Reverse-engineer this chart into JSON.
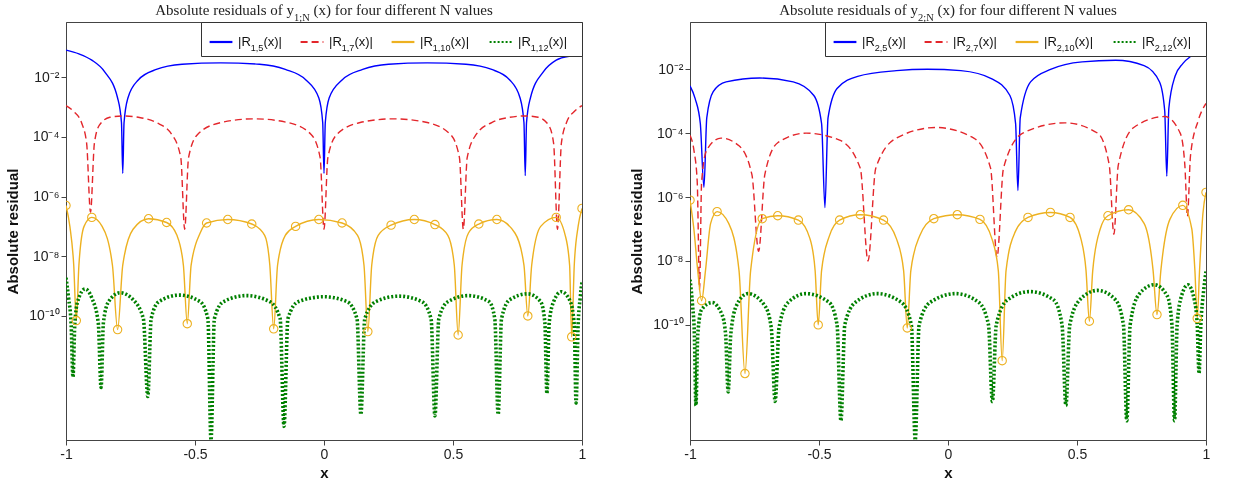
{
  "chart_data": [
    {
      "type": "line",
      "title": "Absolute residuals of y$_{1;N}$ (x) for four different N values",
      "xlabel": "x",
      "ylabel": "Absolute residual",
      "log": true,
      "legend": "top right",
      "xlim": [
        -1,
        1
      ],
      "xticks": [
        -1,
        -0.5,
        0,
        0.5,
        1
      ],
      "ylim": [
        7e-15,
        0.7
      ],
      "yticks": [
        {
          "value": 1e-10,
          "label": "10⁻¹⁰"
        },
        {
          "value": 1e-08,
          "label": "10⁻⁸"
        },
        {
          "value": 1e-06,
          "label": "10⁻⁶"
        },
        {
          "value": 0.0001,
          "label": "10⁻⁴"
        },
        {
          "value": 0.01,
          "label": "10⁻²"
        }
      ],
      "series": [
        {
          "name": "|R$_{1,5}$(x)|",
          "color": "#0000ff",
          "line_style": "solid",
          "x": [
            -1,
            -0.95,
            -0.9,
            -0.85,
            -0.8,
            -0.785,
            -0.78,
            -0.775,
            -0.76,
            -0.72,
            -0.65,
            -0.55,
            -0.4,
            -0.25,
            -0.15,
            -0.07,
            -0.02,
            -0.005,
            0,
            0.005,
            0.02,
            0.07,
            0.15,
            0.25,
            0.4,
            0.55,
            0.65,
            0.72,
            0.76,
            0.775,
            0.78,
            0.785,
            0.8,
            0.85,
            0.9,
            0.95
          ],
          "values": [
            0.08,
            0.06,
            0.037,
            0.015,
            0.002,
            0.0003,
            6e-06,
            0.0003,
            0.002,
            0.008,
            0.018,
            0.027,
            0.03,
            0.027,
            0.018,
            0.008,
            0.002,
            0.0003,
            6e-06,
            0.0003,
            0.002,
            0.008,
            0.018,
            0.027,
            0.03,
            0.027,
            0.018,
            0.008,
            0.002,
            0.0003,
            5e-06,
            0.0003,
            0.002,
            0.015,
            0.037,
            0.05
          ]
        },
        {
          "name": "|R$_{1,7}$(x)|",
          "color": "#e3262b",
          "line_style": "dashed",
          "x": [
            -1,
            -0.97,
            -0.94,
            -0.92,
            -0.905,
            -0.89,
            -0.87,
            -0.83,
            -0.78,
            -0.72,
            -0.65,
            -0.59,
            -0.555,
            -0.54,
            -0.525,
            -0.49,
            -0.4,
            -0.27,
            -0.14,
            -0.05,
            -0.015,
            0,
            0.015,
            0.05,
            0.14,
            0.27,
            0.4,
            0.49,
            0.525,
            0.54,
            0.555,
            0.59,
            0.65,
            0.72,
            0.78,
            0.83,
            0.87,
            0.89,
            0.905,
            0.92,
            0.94,
            0.97,
            1
          ],
          "values": [
            0.0011,
            0.0007,
            0.0003,
            6e-05,
            3e-07,
            6e-05,
            0.00025,
            0.00045,
            0.0005,
            0.00045,
            0.0003,
            0.00012,
            2e-05,
            8e-08,
            2e-05,
            0.00012,
            0.0003,
            0.0004,
            0.0003,
            0.00012,
            2e-05,
            8e-08,
            2e-05,
            0.00012,
            0.0003,
            0.0004,
            0.0003,
            0.00012,
            2e-05,
            8e-08,
            2e-05,
            0.00012,
            0.0003,
            0.00045,
            0.0005,
            0.00045,
            0.00025,
            6e-05,
            8e-08,
            6e-05,
            0.0003,
            0.0007,
            0.0011
          ]
        },
        {
          "name": "|R$_{1,10}$(x)|",
          "color": "#edb120",
          "line_style": "solid",
          "x": [
            -1,
            -0.985,
            -0.97,
            -0.96,
            -0.95,
            -0.93,
            -0.9,
            -0.86,
            -0.82,
            -0.8,
            -0.78,
            -0.74,
            -0.68,
            -0.61,
            -0.57,
            -0.545,
            -0.53,
            -0.515,
            -0.48,
            -0.455,
            -0.373,
            -0.28,
            -0.23,
            -0.21,
            -0.195,
            -0.18,
            -0.15,
            -0.11,
            -0.02,
            0.07,
            0.13,
            0.155,
            0.17,
            0.185,
            0.21,
            0.26,
            0.35,
            0.43,
            0.48,
            0.505,
            0.52,
            0.535,
            0.56,
            0.6,
            0.67,
            0.74,
            0.775,
            0.79,
            0.805,
            0.84,
            0.9,
            0.935,
            0.952,
            0.96,
            0.97,
            0.985,
            1
          ],
          "values": [
            5e-07,
            1e-07,
            5e-09,
            7e-11,
            5e-09,
            1e-07,
            2e-07,
            1e-07,
            5e-09,
            3.5e-11,
            5e-09,
            8e-08,
            1.8e-07,
            1.35e-07,
            5e-08,
            5e-09,
            5.5e-11,
            5e-09,
            6e-08,
            1.3e-07,
            1.7e-07,
            1.2e-07,
            5e-08,
            5e-09,
            3.7e-11,
            5e-09,
            5e-08,
            1e-07,
            1.7e-07,
            1.3e-07,
            5e-08,
            5e-09,
            3e-11,
            5e-09,
            5e-08,
            1.1e-07,
            1.7e-07,
            1.15e-07,
            5e-08,
            5e-09,
            2.3e-11,
            5e-09,
            6e-08,
            1.2e-07,
            1.7e-07,
            6e-08,
            5e-09,
            1e-10,
            5e-09,
            1e-07,
            2e-07,
            5e-08,
            5e-09,
            2e-11,
            5e-09,
            1e-07,
            4e-07
          ]
        },
        {
          "type": "scatter",
          "marker": "circle",
          "color": "#edb120",
          "x": [
            -1,
            -0.96,
            -0.9,
            -0.8,
            -0.68,
            -0.61,
            -0.53,
            -0.455,
            -0.373,
            -0.28,
            -0.195,
            -0.11,
            -0.02,
            0.07,
            0.17,
            0.26,
            0.35,
            0.43,
            0.52,
            0.6,
            0.67,
            0.79,
            0.9,
            0.96,
            1
          ],
          "values": [
            5e-07,
            7e-11,
            2e-07,
            3.5e-11,
            1.8e-07,
            1.35e-07,
            5.5e-11,
            1.3e-07,
            1.7e-07,
            1.2e-07,
            3.7e-11,
            1e-07,
            1.7e-07,
            1.3e-07,
            3e-11,
            1.1e-07,
            1.7e-07,
            1.15e-07,
            2.3e-11,
            1.2e-07,
            1.7e-07,
            1e-10,
            2e-07,
            2e-11,
            4e-07
          ]
        },
        {
          "name": "|R$_{1,12}$(x)|",
          "color": "#008000",
          "line_style": "dotted",
          "x": [
            -1,
            -0.99,
            -0.98,
            -0.973,
            -0.966,
            -0.955,
            -0.926,
            -0.9,
            -0.875,
            -0.864,
            -0.855,
            -0.835,
            -0.79,
            -0.74,
            -0.7,
            -0.683,
            -0.67,
            -0.64,
            -0.56,
            -0.48,
            -0.45,
            -0.438,
            -0.425,
            -0.39,
            -0.3,
            -0.21,
            -0.17,
            -0.155,
            -0.14,
            -0.1,
            0,
            0.09,
            0.128,
            0.143,
            0.158,
            0.2,
            0.29,
            0.38,
            0.415,
            0.43,
            0.445,
            0.48,
            0.56,
            0.64,
            0.662,
            0.675,
            0.688,
            0.72,
            0.79,
            0.84,
            0.856,
            0.864,
            0.873,
            0.89,
            0.92,
            0.955,
            0.97,
            0.977,
            0.985,
            0.993,
            1
          ],
          "values": [
            1.9e-09,
            4e-10,
            5e-11,
            9e-13,
            5e-11,
            3e-10,
            8e-10,
            4e-10,
            6e-11,
            4e-13,
            6e-11,
            3e-10,
            6e-10,
            3.5e-10,
            8e-11,
            2e-13,
            8e-11,
            3e-10,
            5e-10,
            3e-10,
            8e-11,
            7e-15,
            8e-11,
            3e-10,
            4.8e-10,
            3e-10,
            8e-11,
            2e-14,
            8e-11,
            3e-10,
            4.4e-10,
            3e-10,
            8e-11,
            5e-14,
            8e-11,
            3e-10,
            4.6e-10,
            3e-10,
            8e-11,
            4.5e-14,
            8e-11,
            3e-10,
            4.8e-10,
            3e-10,
            8e-11,
            5e-14,
            8e-11,
            3.5e-10,
            5.5e-10,
            3e-10,
            6e-11,
            2.5e-13,
            6e-11,
            3e-10,
            6.5e-10,
            3e-10,
            5e-11,
            1.2e-13,
            5e-11,
            4e-10,
            1.4e-09
          ]
        }
      ]
    },
    {
      "type": "line",
      "title": "Absolute residuals of y$_{2;N}$ (x) for four different N values",
      "xlabel": "x",
      "ylabel": "Absolute residual",
      "log": true,
      "legend": "top right",
      "xlim": [
        -1,
        1
      ],
      "xticks": [
        -1,
        -0.5,
        0,
        0.5,
        1
      ],
      "ylim": [
        2.5e-14,
        0.3
      ],
      "yticks": [
        {
          "value": 1e-10,
          "label": "10⁻¹⁰"
        },
        {
          "value": 1e-08,
          "label": "10⁻⁸"
        },
        {
          "value": 1e-06,
          "label": "10⁻⁶"
        },
        {
          "value": 0.0001,
          "label": "10⁻⁴"
        },
        {
          "value": 0.01,
          "label": "10⁻²"
        }
      ],
      "series": [
        {
          "name": "|R$_{2,5}$(x)|",
          "color": "#0000ff",
          "line_style": "solid",
          "x": [
            -1,
            -0.98,
            -0.96,
            -0.946,
            -0.935,
            -0.91,
            -0.86,
            -0.73,
            -0.6,
            -0.52,
            -0.49,
            -0.477,
            -0.465,
            -0.43,
            -0.35,
            -0.2,
            -0.08,
            0.05,
            0.17,
            0.24,
            0.262,
            0.271,
            0.28,
            0.32,
            0.4,
            0.52,
            0.65,
            0.76,
            0.82,
            0.84,
            0.848,
            0.856,
            0.88,
            0.91,
            0.94
          ],
          "values": [
            0.003,
            0.0012,
            0.0002,
            2e-06,
            0.0003,
            0.002,
            0.004,
            0.0053,
            0.004,
            0.0015,
            0.0002,
            4.7e-07,
            0.0003,
            0.0025,
            0.006,
            0.009,
            0.01,
            0.009,
            0.005,
            0.0015,
            0.0002,
            1.6e-06,
            0.0003,
            0.004,
            0.01,
            0.017,
            0.019,
            0.013,
            0.004,
            0.0005,
            4.5e-06,
            0.0006,
            0.006,
            0.015,
            0.025
          ]
        },
        {
          "name": "|R$_{2,7}$(x)|",
          "color": "#e3262b",
          "line_style": "dashed",
          "x": [
            -1,
            -0.985,
            -0.972,
            -0.963,
            -0.955,
            -0.935,
            -0.88,
            -0.81,
            -0.76,
            -0.734,
            -0.71,
            -0.66,
            -0.55,
            -0.42,
            -0.34,
            -0.31,
            -0.28,
            -0.2,
            -0.047,
            0.1,
            0.165,
            0.19,
            0.215,
            0.29,
            0.453,
            0.58,
            0.625,
            0.643,
            0.66,
            0.72,
            0.84,
            0.9,
            0.918,
            0.928,
            0.94,
            0.97,
            1
          ],
          "values": [
            8.5e-05,
            3e-05,
            3e-06,
            1.3e-09,
            3e-06,
            3e-05,
            7e-05,
            4e-05,
            5e-06,
            2e-08,
            5e-06,
            5e-05,
            0.0001,
            6e-05,
            8e-06,
            1e-08,
            8e-06,
            7e-05,
            0.00015,
            7e-05,
            8e-06,
            1.3e-08,
            8e-06,
            0.0001,
            0.00021,
            0.0001,
            1e-05,
            6.8e-08,
            1e-05,
            0.00015,
            0.00033,
            0.0001,
            1e-05,
            2.5e-07,
            2e-05,
            0.00025,
            0.00085
          ]
        },
        {
          "name": "|R$_{2,10}$(x)|",
          "color": "#edb120",
          "line_style": "solid",
          "x": [
            -1,
            -0.985,
            -0.97,
            -0.955,
            -0.94,
            -0.92,
            -0.895,
            -0.85,
            -0.81,
            -0.787,
            -0.765,
            -0.72,
            -0.66,
            -0.58,
            -0.535,
            -0.515,
            -0.503,
            -0.49,
            -0.46,
            -0.42,
            -0.34,
            -0.25,
            -0.2,
            -0.172,
            -0.158,
            -0.144,
            -0.11,
            -0.055,
            0.036,
            0.124,
            0.17,
            0.195,
            0.21,
            0.225,
            0.26,
            0.31,
            0.397,
            0.473,
            0.515,
            0.535,
            0.548,
            0.561,
            0.59,
            0.62,
            0.7,
            0.76,
            0.795,
            0.81,
            0.825,
            0.86,
            0.91,
            0.945,
            0.957,
            0.966,
            0.975,
            0.988,
            1
          ],
          "values": [
            8e-07,
            1e-07,
            5e-09,
            5.7e-10,
            5e-09,
            1.5e-07,
            3.5e-07,
            1.5e-07,
            5e-09,
            3e-12,
            5e-09,
            2.1e-07,
            2.6e-07,
            1.9e-07,
            5e-08,
            5e-09,
            1e-10,
            5e-09,
            6e-08,
            1.9e-07,
            2.8e-07,
            1.9e-07,
            5e-08,
            5e-09,
            8e-11,
            5e-09,
            6e-08,
            2.1e-07,
            2.8e-07,
            2e-07,
            5e-08,
            5e-09,
            7.6e-12,
            5e-09,
            8e-08,
            2.3e-07,
            3.3e-07,
            2.3e-07,
            5e-08,
            5e-09,
            1.3e-10,
            5e-09,
            1e-07,
            2.6e-07,
            4e-07,
            1.5e-07,
            5e-09,
            2.1e-10,
            5e-09,
            2e-07,
            5.5e-07,
            1e-07,
            5e-09,
            1.6e-10,
            5e-09,
            3e-07,
            1.4e-06
          ]
        },
        {
          "type": "scatter",
          "marker": "circle",
          "color": "#edb120",
          "x": [
            -1,
            -0.955,
            -0.895,
            -0.787,
            -0.72,
            -0.66,
            -0.58,
            -0.503,
            -0.42,
            -0.34,
            -0.25,
            -0.158,
            -0.055,
            0.036,
            0.124,
            0.21,
            0.31,
            0.397,
            0.473,
            0.548,
            0.62,
            0.7,
            0.81,
            0.91,
            0.966,
            1
          ],
          "values": [
            8e-07,
            5.7e-10,
            3.5e-07,
            3e-12,
            2.1e-07,
            2.6e-07,
            1.9e-07,
            1e-10,
            1.9e-07,
            2.8e-07,
            1.9e-07,
            8e-11,
            2.1e-07,
            2.8e-07,
            2e-07,
            7.6e-12,
            2.3e-07,
            3.3e-07,
            2.3e-07,
            1.3e-10,
            2.6e-07,
            4e-07,
            2.1e-10,
            5.5e-07,
            1.6e-10,
            1.4e-06
          ]
        },
        {
          "name": "|R$_{2,12}$(x)|",
          "color": "#008000",
          "line_style": "dotted",
          "x": [
            -1,
            -0.99,
            -0.983,
            -0.977,
            -0.97,
            -0.955,
            -0.915,
            -0.875,
            -0.862,
            -0.852,
            -0.842,
            -0.82,
            -0.776,
            -0.71,
            -0.685,
            -0.67,
            -0.655,
            -0.62,
            -0.55,
            -0.46,
            -0.43,
            -0.415,
            -0.4,
            -0.36,
            -0.275,
            -0.18,
            -0.142,
            -0.127,
            -0.112,
            -0.07,
            0.03,
            0.12,
            0.157,
            0.172,
            0.187,
            0.23,
            0.317,
            0.41,
            0.442,
            0.457,
            0.472,
            0.51,
            0.58,
            0.65,
            0.68,
            0.693,
            0.706,
            0.74,
            0.8,
            0.85,
            0.868,
            0.878,
            0.888,
            0.905,
            0.93,
            0.955,
            0.966,
            0.973,
            0.98,
            0.99,
            1
          ],
          "values": [
            2.6e-09,
            4e-10,
            5e-11,
            3e-13,
            5e-11,
            3e-10,
            5e-10,
            2e-10,
            5e-11,
            8e-13,
            5e-11,
            4e-10,
            9.5e-10,
            4e-10,
            8e-11,
            4e-13,
            8e-11,
            5e-10,
            9.5e-10,
            5e-10,
            1e-10,
            1e-13,
            1e-10,
            5e-10,
            9.5e-10,
            5e-10,
            1e-10,
            2.5e-14,
            1e-10,
            5e-10,
            9.5e-10,
            5e-10,
            1e-10,
            4e-13,
            1e-10,
            6e-10,
            1.1e-09,
            6e-10,
            1e-10,
            3e-13,
            1e-10,
            6e-10,
            1.2e-09,
            6e-10,
            1e-10,
            1e-13,
            1e-10,
            9e-10,
            1.8e-09,
            8e-10,
            1e-10,
            1e-13,
            1e-10,
            8e-10,
            1.8e-09,
            6e-10,
            1e-10,
            3e-12,
            1e-10,
            1e-09,
            4.7e-09
          ]
        }
      ]
    }
  ]
}
